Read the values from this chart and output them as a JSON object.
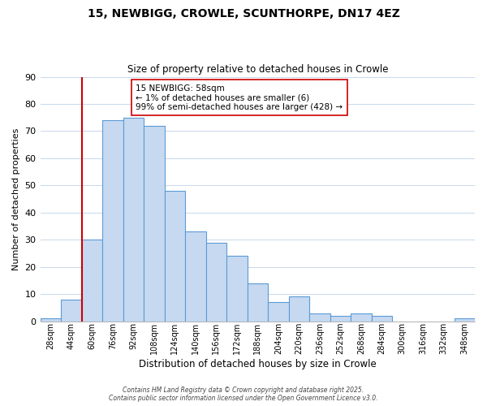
{
  "title_line1": "15, NEWBIGG, CROWLE, SCUNTHORPE, DN17 4EZ",
  "title_line2": "Size of property relative to detached houses in Crowle",
  "xlabel": "Distribution of detached houses by size in Crowle",
  "ylabel": "Number of detached properties",
  "bar_labels": [
    "28sqm",
    "44sqm",
    "60sqm",
    "76sqm",
    "92sqm",
    "108sqm",
    "124sqm",
    "140sqm",
    "156sqm",
    "172sqm",
    "188sqm",
    "204sqm",
    "220sqm",
    "236sqm",
    "252sqm",
    "268sqm",
    "284sqm",
    "300sqm",
    "316sqm",
    "332sqm",
    "348sqm"
  ],
  "bar_values": [
    1,
    8,
    30,
    74,
    75,
    72,
    48,
    33,
    29,
    24,
    14,
    7,
    9,
    3,
    2,
    3,
    2,
    0,
    0,
    0,
    1
  ],
  "bar_color": "#c6d9f1",
  "bar_edge_color": "#5b9bd5",
  "ylim": [
    0,
    90
  ],
  "yticks": [
    0,
    10,
    20,
    30,
    40,
    50,
    60,
    70,
    80,
    90
  ],
  "vline_color": "#cc0000",
  "annotation_title": "15 NEWBIGG: 58sqm",
  "annotation_line1": "← 1% of detached houses are smaller (6)",
  "annotation_line2": "99% of semi-detached houses are larger (428) →",
  "footer_line1": "Contains HM Land Registry data © Crown copyright and database right 2025.",
  "footer_line2": "Contains public sector information licensed under the Open Government Licence v3.0.",
  "background_color": "#ffffff",
  "grid_color": "#c8d8ec"
}
